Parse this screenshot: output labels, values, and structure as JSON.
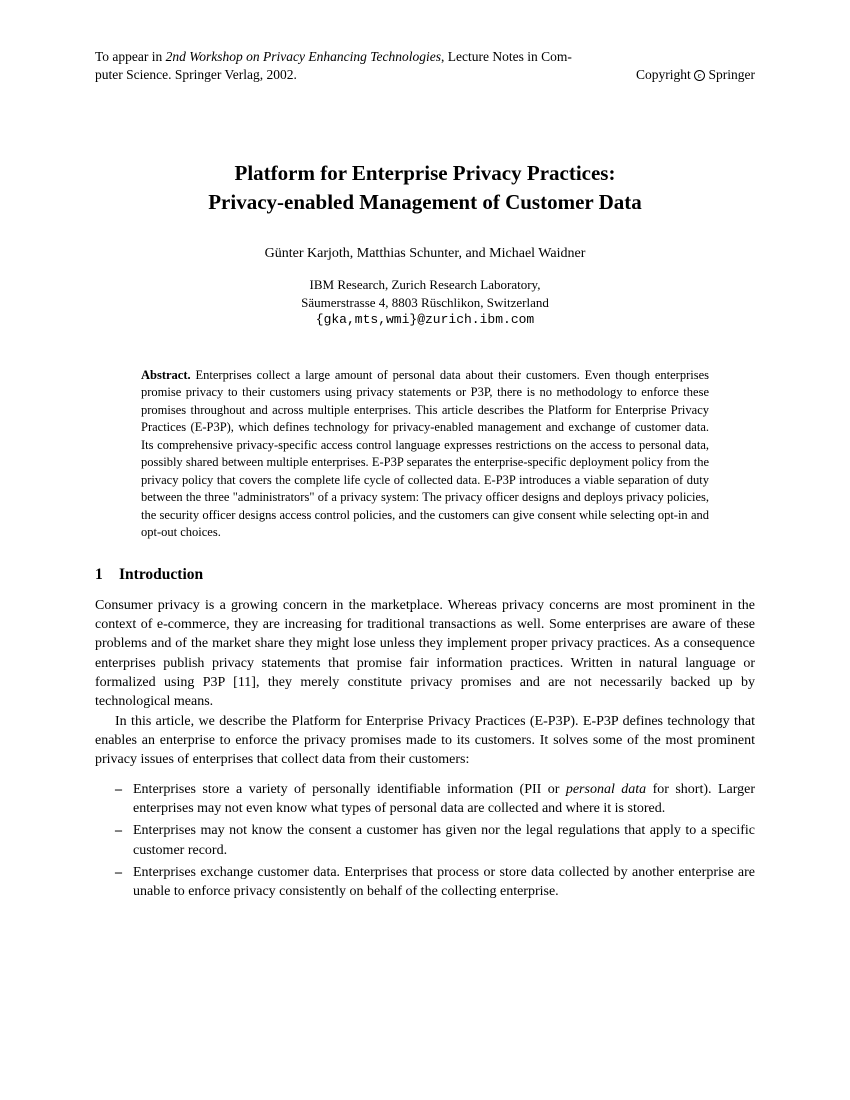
{
  "header": {
    "line1_prefix": "To appear in ",
    "line1_italic": "2nd Workshop on Privacy Enhancing Technologies",
    "line1_suffix": ", Lecture Notes in Com-",
    "line2_left": "puter Science. Springer Verlag, 2002.",
    "line2_right_prefix": "Copyright ",
    "copyright_symbol": "c",
    "line2_right_suffix": " Springer"
  },
  "title": {
    "line1": "Platform for Enterprise Privacy Practices:",
    "line2": "Privacy-enabled Management of Customer Data"
  },
  "authors": "Günter Karjoth, Matthias Schunter, and Michael Waidner",
  "affiliation": {
    "line1": "IBM Research, Zurich Research Laboratory,",
    "line2": "Säumerstrasse 4, 8803 Rüschlikon, Switzerland",
    "email": "{gka,mts,wmi}@zurich.ibm.com"
  },
  "abstract": {
    "label": "Abstract.",
    "text": " Enterprises collect a large amount of personal data about their customers. Even though enterprises promise privacy to their customers using privacy statements or P3P, there is no methodology to enforce these promises throughout and across multiple enterprises. This article describes the Platform for Enterprise Privacy Practices (E-P3P), which defines technology for privacy-enabled management and exchange of customer data. Its comprehensive privacy-specific access control language expresses restrictions on the access to personal data, possibly shared between multiple enterprises. E-P3P separates the enterprise-specific deployment policy from the privacy policy that covers the complete life cycle of collected data. E-P3P introduces a viable separation of duty between the three \"administrators\" of a privacy system: The privacy officer designs and deploys privacy policies, the security officer designs access control policies, and the customers can give consent while selecting opt-in and opt-out choices."
  },
  "section": {
    "number": "1",
    "title": "Introduction"
  },
  "body": {
    "p1": "Consumer privacy is a growing concern in the marketplace. Whereas privacy concerns are most prominent in the context of e-commerce, they are increasing for traditional transactions as well. Some enterprises are aware of these problems and of the market share they might lose unless they implement proper privacy practices. As a consequence enterprises publish privacy statements that promise fair information practices. Written in natural language or formalized using P3P [11], they merely constitute privacy promises and are not necessarily backed up by technological means.",
    "p2": "In this article, we describe the Platform for Enterprise Privacy Practices (E-P3P). E-P3P defines technology that enables an enterprise to enforce the privacy promises made to its customers. It solves some of the most prominent privacy issues of enterprises that collect data from their customers:"
  },
  "bullets": [
    {
      "prefix": "Enterprises store a variety of personally identifiable information (PII or ",
      "italic": "personal data",
      "suffix": " for short). Larger enterprises may not even know what types of personal data are collected and where it is stored."
    },
    {
      "text": "Enterprises may not know the consent a customer has given nor the legal regulations that apply to a specific customer record."
    },
    {
      "text": "Enterprises exchange customer data. Enterprises that process or store data collected by another enterprise are unable to enforce privacy consistently on behalf of the collecting enterprise."
    }
  ]
}
